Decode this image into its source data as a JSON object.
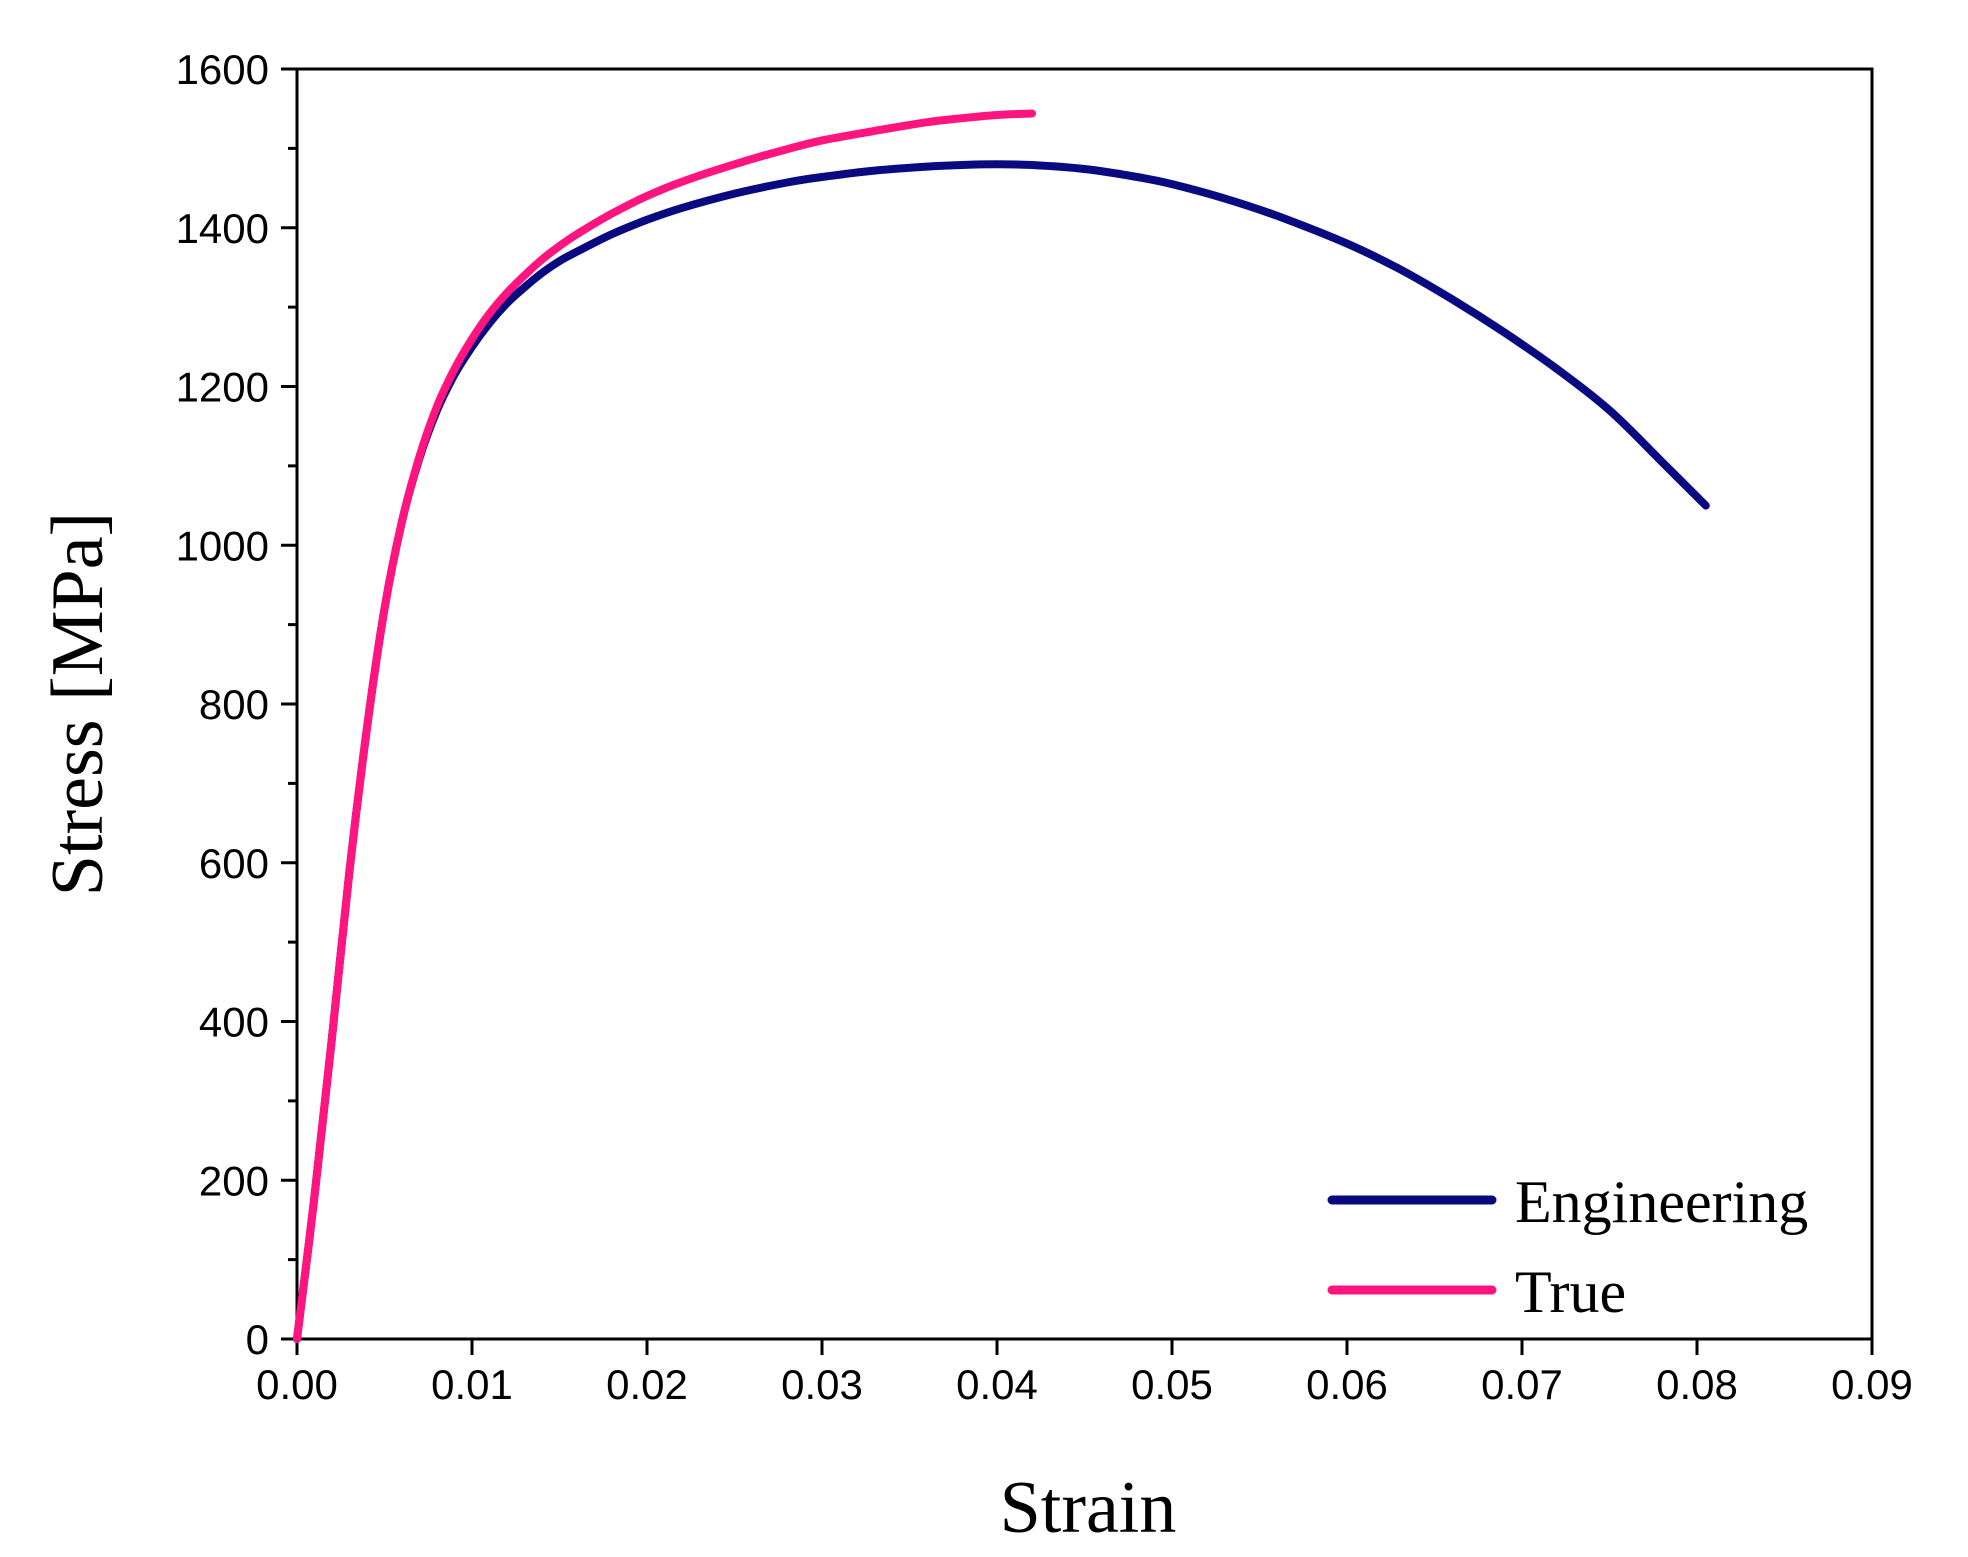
{
  "chart_data": {
    "type": "line",
    "title": "",
    "xlabel": "Strain",
    "ylabel": "Stress [MPa]",
    "xlim": [
      0,
      0.09
    ],
    "ylim": [
      0,
      1600
    ],
    "x_ticks": [
      0,
      0.01,
      0.02,
      0.03,
      0.04,
      0.05,
      0.06,
      0.07,
      0.08,
      0.09
    ],
    "x_tick_labels": [
      "0.00",
      "0.01",
      "0.02",
      "0.03",
      "0.04",
      "0.05",
      "0.06",
      "0.07",
      "0.08",
      "0.09"
    ],
    "y_ticks": [
      0,
      200,
      400,
      600,
      800,
      1000,
      1200,
      1400,
      1600
    ],
    "y_tick_labels": [
      "0",
      "200",
      "400",
      "600",
      "800",
      "1000",
      "1200",
      "1400",
      "1600"
    ],
    "y_minor_step": 100,
    "grid": false,
    "legend_position": "bottom-right",
    "series": [
      {
        "name": "Engineering",
        "color": "#0a0a80",
        "x": [
          0,
          0.001,
          0.002,
          0.003,
          0.004,
          0.005,
          0.006,
          0.007,
          0.008,
          0.009,
          0.01,
          0.011,
          0.012,
          0.013,
          0.014,
          0.015,
          0.016,
          0.018,
          0.02,
          0.022,
          0.025,
          0.028,
          0.03,
          0.033,
          0.036,
          0.038,
          0.04,
          0.042,
          0.045,
          0.048,
          0.05,
          0.053,
          0.056,
          0.06,
          0.063,
          0.066,
          0.069,
          0.072,
          0.075,
          0.078,
          0.0805
        ],
        "y": [
          0,
          180,
          380,
          590,
          770,
          920,
          1030,
          1110,
          1170,
          1215,
          1250,
          1280,
          1305,
          1325,
          1343,
          1358,
          1370,
          1392,
          1410,
          1425,
          1443,
          1457,
          1464,
          1472,
          1477,
          1479,
          1480,
          1479,
          1474,
          1464,
          1455,
          1437,
          1415,
          1380,
          1348,
          1310,
          1268,
          1222,
          1170,
          1105,
          1050
        ]
      },
      {
        "name": "True",
        "color": "#ff1480",
        "x": [
          0,
          0.001,
          0.002,
          0.003,
          0.004,
          0.005,
          0.006,
          0.007,
          0.008,
          0.009,
          0.01,
          0.011,
          0.012,
          0.013,
          0.014,
          0.015,
          0.016,
          0.018,
          0.02,
          0.022,
          0.025,
          0.028,
          0.03,
          0.033,
          0.036,
          0.038,
          0.04,
          0.042
        ],
        "y": [
          0,
          180,
          380,
          590,
          770,
          920,
          1030,
          1112,
          1175,
          1222,
          1260,
          1292,
          1318,
          1340,
          1360,
          1377,
          1392,
          1418,
          1440,
          1458,
          1480,
          1499,
          1510,
          1522,
          1533,
          1538,
          1542,
          1544
        ]
      }
    ]
  }
}
